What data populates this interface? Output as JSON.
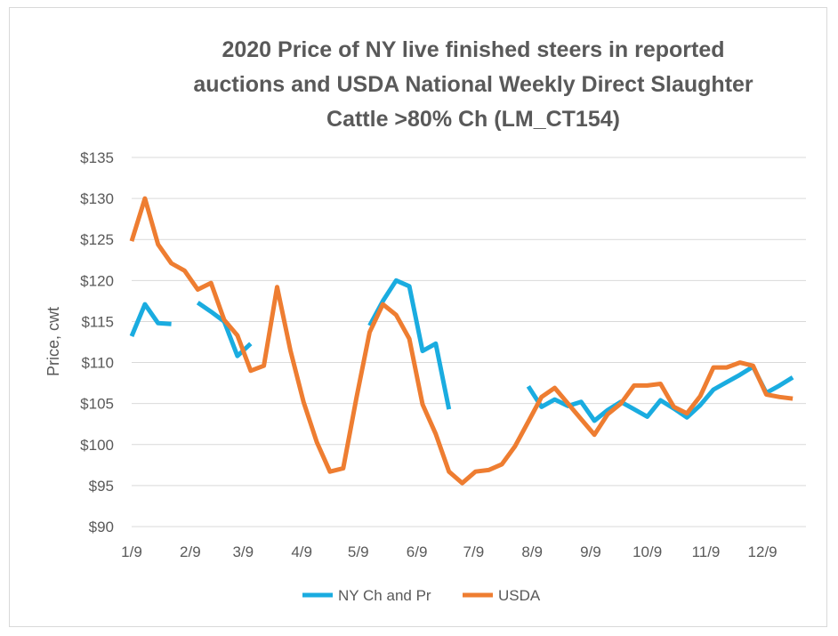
{
  "chart_data": {
    "type": "line",
    "title_lines": [
      "2020 Price of NY live finished steers in reported",
      "auctions and USDA National Weekly Direct Slaughter",
      "Cattle >80% Ch (LM_CT154)"
    ],
    "ylabel": "Price, cwt",
    "ylim": [
      90,
      135
    ],
    "y_ticks": [
      90,
      95,
      100,
      105,
      110,
      115,
      120,
      125,
      130,
      135
    ],
    "y_tick_labels": [
      "$90",
      "$95",
      "$100",
      "$105",
      "$110",
      "$115",
      "$120",
      "$125",
      "$130",
      "$135"
    ],
    "x_ticks": [
      0,
      4.43,
      8.43,
      12.86,
      17.14,
      21.57,
      25.86,
      30.29,
      34.71,
      39,
      43.43,
      47.71
    ],
    "x_tick_labels": [
      "1/9",
      "2/9",
      "3/9",
      "4/9",
      "5/9",
      "6/9",
      "7/9",
      "8/9",
      "9/9",
      "10/9",
      "11/9",
      "12/9"
    ],
    "xlim": [
      0,
      51
    ],
    "grid": true,
    "legend_position": "bottom",
    "series": [
      {
        "name": "NY Ch and Pr",
        "color": "#1aace0",
        "segments": [
          [
            [
              0,
              113.2
            ],
            [
              1,
              117.1
            ],
            [
              2,
              114.8
            ],
            [
              3,
              114.7
            ]
          ],
          [
            [
              5,
              117.3
            ],
            [
              6,
              116.2
            ],
            [
              7,
              115
            ],
            [
              8,
              110.8
            ],
            [
              9,
              112.3
            ]
          ],
          [
            [
              18,
              114.5
            ],
            [
              19,
              117.5
            ],
            [
              20,
              120
            ],
            [
              21,
              119.3
            ],
            [
              22,
              111.4
            ],
            [
              23,
              112.3
            ],
            [
              24,
              104.3
            ]
          ],
          [
            [
              30,
              107.1
            ],
            [
              31,
              104.6
            ],
            [
              32,
              105.5
            ],
            [
              33,
              104.7
            ],
            [
              34,
              105.2
            ],
            [
              35,
              102.9
            ],
            [
              36,
              104.2
            ],
            [
              37,
              105.2
            ],
            [
              38,
              104.3
            ],
            [
              39,
              103.4
            ],
            [
              40,
              105.4
            ],
            [
              41,
              104.4
            ],
            [
              42,
              103.3
            ],
            [
              43,
              104.8
            ],
            [
              44,
              106.7
            ],
            [
              45,
              107.6
            ],
            [
              46,
              108.5
            ],
            [
              47,
              109.5
            ],
            [
              48,
              106.3
            ],
            [
              49,
              107.2
            ],
            [
              50,
              108.2
            ]
          ]
        ]
      },
      {
        "name": "USDA",
        "color": "#ee7d31",
        "segments": [
          [
            [
              0,
              124.8
            ],
            [
              1,
              130
            ],
            [
              2,
              124.4
            ],
            [
              3,
              122.1
            ],
            [
              4,
              121.2
            ],
            [
              5,
              118.9
            ],
            [
              6,
              119.7
            ],
            [
              7,
              115.2
            ],
            [
              8,
              113.3
            ],
            [
              9,
              109
            ],
            [
              10,
              109.6
            ],
            [
              11,
              119.2
            ],
            [
              12,
              111.5
            ],
            [
              13,
              105.2
            ],
            [
              14,
              100.3
            ],
            [
              15,
              96.7
            ],
            [
              16,
              97.1
            ],
            [
              17,
              105.7
            ],
            [
              18,
              113.7
            ],
            [
              19,
              117.1
            ],
            [
              20,
              115.8
            ],
            [
              21,
              112.9
            ],
            [
              22,
              104.9
            ],
            [
              23,
              101.3
            ],
            [
              24,
              96.7
            ],
            [
              25,
              95.3
            ],
            [
              26,
              96.7
            ],
            [
              27,
              96.9
            ],
            [
              28,
              97.6
            ],
            [
              29,
              99.8
            ],
            [
              30,
              102.8
            ],
            [
              31,
              105.8
            ],
            [
              32,
              106.9
            ],
            [
              33,
              105
            ],
            [
              34,
              103.1
            ],
            [
              35,
              101.2
            ],
            [
              36,
              103.7
            ],
            [
              37,
              105
            ],
            [
              38,
              107.2
            ],
            [
              39,
              107.2
            ],
            [
              40,
              107.4
            ],
            [
              41,
              104.6
            ],
            [
              42,
              103.8
            ],
            [
              43,
              105.9
            ],
            [
              44,
              109.4
            ],
            [
              45,
              109.4
            ],
            [
              46,
              110
            ],
            [
              47,
              109.6
            ],
            [
              48,
              106.1
            ],
            [
              49,
              105.8
            ],
            [
              50,
              105.6
            ]
          ]
        ]
      }
    ]
  }
}
